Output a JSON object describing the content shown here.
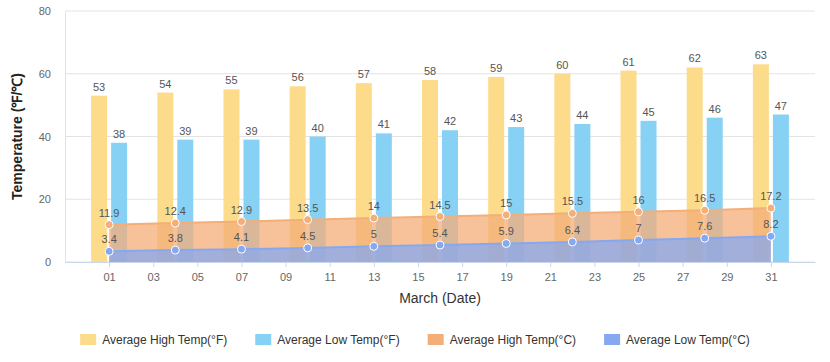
{
  "chart_data": {
    "type": "bar",
    "x_label": "March (Date)",
    "y_label": "Temperature (℉/℃)",
    "x": [
      1,
      4,
      7,
      10,
      13,
      16,
      19,
      22,
      25,
      28,
      31
    ],
    "xlim": [
      -1,
      33
    ],
    "xticks": [
      {
        "value": 1,
        "label": "01"
      },
      {
        "value": 3,
        "label": "03"
      },
      {
        "value": 5,
        "label": "05"
      },
      {
        "value": 7,
        "label": "07"
      },
      {
        "value": 9,
        "label": "09"
      },
      {
        "value": 11,
        "label": "11"
      },
      {
        "value": 13,
        "label": "13"
      },
      {
        "value": 15,
        "label": "15"
      },
      {
        "value": 17,
        "label": "17"
      },
      {
        "value": 19,
        "label": "19"
      },
      {
        "value": 21,
        "label": "21"
      },
      {
        "value": 23,
        "label": "23"
      },
      {
        "value": 25,
        "label": "25"
      },
      {
        "value": 27,
        "label": "27"
      },
      {
        "value": 29,
        "label": "29"
      },
      {
        "value": 31,
        "label": "31"
      }
    ],
    "ylim": [
      0,
      80
    ],
    "yticks": [
      0,
      20,
      40,
      60,
      80
    ],
    "grid": true,
    "legend": "bottom",
    "data_labels": true,
    "series": [
      {
        "name": "Average High Temp(°F)",
        "type": "bar",
        "color": "#fcdb8b",
        "values": [
          53,
          54,
          55,
          56,
          57,
          58,
          59,
          60,
          61,
          62,
          63
        ]
      },
      {
        "name": "Average Low Temp(°F)",
        "type": "bar",
        "color": "#87d1f5",
        "values": [
          38,
          39,
          39,
          40,
          41,
          42,
          43,
          44,
          45,
          46,
          47
        ]
      },
      {
        "name": "Average High Temp(°C)",
        "type": "area",
        "marker": "circle",
        "color": "#f4ae78",
        "values": [
          11.9,
          12.4,
          12.9,
          13.5,
          14,
          14.5,
          15,
          15.5,
          16,
          16.5,
          17.2
        ]
      },
      {
        "name": "Average Low Temp(°C)",
        "type": "area",
        "marker": "circle",
        "color": "#86a8f0",
        "values": [
          3.4,
          3.8,
          4.1,
          4.5,
          5,
          5.4,
          5.9,
          6.4,
          7,
          7.6,
          8.2
        ]
      }
    ]
  }
}
